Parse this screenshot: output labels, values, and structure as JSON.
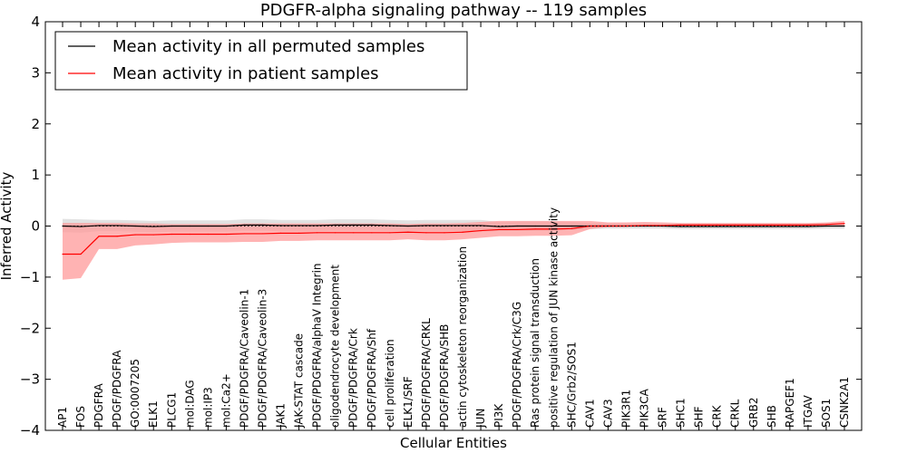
{
  "chart_data": {
    "type": "line",
    "title": "PDGFR-alpha signaling pathway -- 119 samples",
    "xlabel": "Cellular Entities",
    "ylabel": "Inferred Activity",
    "ylim": [
      -4,
      4
    ],
    "yticks": [
      4,
      3,
      2,
      1,
      0,
      -1,
      -2,
      -3,
      -4
    ],
    "ytick_labels": [
      "4",
      "3",
      "2",
      "1",
      "0",
      "−1",
      "−2",
      "−3",
      "−4"
    ],
    "grid": false,
    "legend_position": "top-left",
    "categories": [
      "AP1",
      "FOS",
      "PDGFRA",
      "PDGF/PDGFRA",
      "GO:0007205",
      "ELK1",
      "PLCG1",
      "mol:DAG",
      "mol:IP3",
      "mol:Ca2+",
      "PDGF/PDGFRA/Caveolin-1",
      "PDGF/PDGFRA/Caveolin-3",
      "JAK1",
      "JAK-STAT cascade",
      "PDGF/PDGFRA/alphaV Integrin",
      "oligodendrocyte development",
      "PDGF/PDGFRA/Crk",
      "PDGF/PDGFRA/Shf",
      "cell proliferation",
      "ELK1/SRF",
      "PDGF/PDGFRA/CRKL",
      "PDGF/PDGFRA/SHB",
      "actin cytoskeleton reorganization",
      "JUN",
      "PI3K",
      "PDGF/PDGFRA/Crk/C3G",
      "Ras protein signal transduction",
      "positive regulation of JUN kinase activity",
      "SHC/Grb2/SOS1",
      "CAV1",
      "CAV3",
      "PIK3R1",
      "PIK3CA",
      "SRF",
      "SHC1",
      "SHF",
      "CRK",
      "CRKL",
      "GRB2",
      "SHB",
      "RAPGEF1",
      "ITGAV",
      "SOS1",
      "CSNK2A1"
    ],
    "series": [
      {
        "name": "Mean activity in all permuted samples",
        "color": "#000000",
        "band_color": "#c8c8c8",
        "values": [
          0,
          -0.01,
          0.01,
          0.01,
          0,
          -0.01,
          0,
          0,
          0,
          0,
          0.02,
          0.02,
          0.01,
          0.01,
          0.01,
          0.02,
          0.02,
          0.02,
          0.01,
          0,
          0.01,
          0.01,
          0.01,
          0.01,
          -0.01,
          0,
          0,
          0,
          0,
          0,
          0,
          0,
          0,
          0,
          -0.01,
          -0.01,
          -0.01,
          -0.01,
          -0.01,
          -0.01,
          -0.01,
          -0.01,
          0,
          0
        ],
        "band_lower": [
          -0.12,
          -0.13,
          -0.1,
          -0.1,
          -0.11,
          -0.12,
          -0.11,
          -0.11,
          -0.11,
          -0.11,
          -0.09,
          -0.09,
          -0.1,
          -0.1,
          -0.1,
          -0.09,
          -0.09,
          -0.09,
          -0.1,
          -0.11,
          -0.1,
          -0.1,
          -0.1,
          -0.1,
          -0.1,
          -0.09,
          -0.09,
          -0.09,
          -0.08,
          -0.06,
          -0.05,
          -0.05,
          -0.05,
          -0.05,
          -0.06,
          -0.06,
          -0.06,
          -0.06,
          -0.06,
          -0.06,
          -0.06,
          -0.06,
          -0.05,
          -0.05
        ],
        "band_upper": [
          0.14,
          0.13,
          0.12,
          0.12,
          0.11,
          0.1,
          0.11,
          0.11,
          0.11,
          0.11,
          0.13,
          0.13,
          0.12,
          0.12,
          0.12,
          0.13,
          0.13,
          0.13,
          0.12,
          0.11,
          0.12,
          0.12,
          0.12,
          0.12,
          0.08,
          0.09,
          0.09,
          0.09,
          0.08,
          0.06,
          0.05,
          0.05,
          0.05,
          0.05,
          0.04,
          0.04,
          0.04,
          0.04,
          0.04,
          0.04,
          0.04,
          0.04,
          0.05,
          0.05
        ]
      },
      {
        "name": "Mean activity in patient samples",
        "color": "#ff0000",
        "band_color": "#ff9999",
        "values": [
          -0.55,
          -0.55,
          -0.2,
          -0.2,
          -0.17,
          -0.17,
          -0.16,
          -0.16,
          -0.16,
          -0.16,
          -0.15,
          -0.15,
          -0.14,
          -0.14,
          -0.13,
          -0.13,
          -0.13,
          -0.13,
          -0.13,
          -0.12,
          -0.13,
          -0.13,
          -0.12,
          -0.09,
          -0.07,
          -0.07,
          -0.06,
          -0.06,
          -0.05,
          0,
          0,
          0,
          0.01,
          0.01,
          0.02,
          0.02,
          0.02,
          0.02,
          0.02,
          0.02,
          0.02,
          0.02,
          0.03,
          0.05
        ],
        "band_lower": [
          -1.05,
          -1.02,
          -0.45,
          -0.45,
          -0.38,
          -0.36,
          -0.33,
          -0.32,
          -0.32,
          -0.32,
          -0.31,
          -0.31,
          -0.29,
          -0.29,
          -0.28,
          -0.28,
          -0.28,
          -0.28,
          -0.28,
          -0.26,
          -0.28,
          -0.28,
          -0.26,
          -0.23,
          -0.2,
          -0.2,
          -0.19,
          -0.19,
          -0.18,
          -0.06,
          -0.02,
          -0.01,
          0,
          -0.01,
          0,
          0,
          0,
          0,
          0,
          0,
          0,
          0,
          0.01,
          0.01
        ],
        "band_upper": [
          0.06,
          0.06,
          0.06,
          0.06,
          0.05,
          0.05,
          0.04,
          0.04,
          0.04,
          0.04,
          0.05,
          0.05,
          0.05,
          0.05,
          0.05,
          0.05,
          0.05,
          0.05,
          0.05,
          0.04,
          0.05,
          0.05,
          0.06,
          0.08,
          0.1,
          0.1,
          0.1,
          0.1,
          0.1,
          0.1,
          0.07,
          0.07,
          0.08,
          0.07,
          0.06,
          0.06,
          0.06,
          0.06,
          0.06,
          0.06,
          0.06,
          0.06,
          0.07,
          0.1
        ]
      }
    ]
  }
}
